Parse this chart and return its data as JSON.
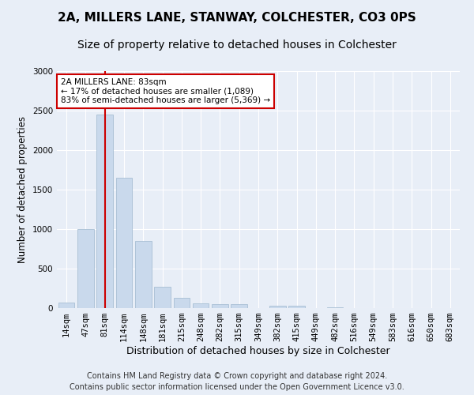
{
  "title1": "2A, MILLERS LANE, STANWAY, COLCHESTER, CO3 0PS",
  "title2": "Size of property relative to detached houses in Colchester",
  "xlabel": "Distribution of detached houses by size in Colchester",
  "ylabel": "Number of detached properties",
  "categories": [
    "14sqm",
    "47sqm",
    "81sqm",
    "114sqm",
    "148sqm",
    "181sqm",
    "215sqm",
    "248sqm",
    "282sqm",
    "315sqm",
    "349sqm",
    "382sqm",
    "415sqm",
    "449sqm",
    "482sqm",
    "516sqm",
    "549sqm",
    "583sqm",
    "616sqm",
    "650sqm",
    "683sqm"
  ],
  "values": [
    75,
    1000,
    2450,
    1650,
    850,
    275,
    130,
    60,
    50,
    50,
    5,
    30,
    30,
    0,
    10,
    0,
    0,
    0,
    0,
    0,
    0
  ],
  "bar_color": "#c9d9ec",
  "bar_edge_color": "#a8bfd4",
  "vline_x": 2,
  "vline_color": "#cc0000",
  "annotation_text": "2A MILLERS LANE: 83sqm\n← 17% of detached houses are smaller (1,089)\n83% of semi-detached houses are larger (5,369) →",
  "annotation_box_facecolor": "white",
  "annotation_box_edgecolor": "#cc0000",
  "ylim": [
    0,
    3000
  ],
  "yticks": [
    0,
    500,
    1000,
    1500,
    2000,
    2500,
    3000
  ],
  "bg_color": "#e8eef7",
  "footer": "Contains HM Land Registry data © Crown copyright and database right 2024.\nContains public sector information licensed under the Open Government Licence v3.0.",
  "title1_fontsize": 11,
  "title2_fontsize": 10,
  "xlabel_fontsize": 9,
  "ylabel_fontsize": 8.5,
  "tick_fontsize": 7.5,
  "footer_fontsize": 7,
  "ann_fontsize": 7.5
}
